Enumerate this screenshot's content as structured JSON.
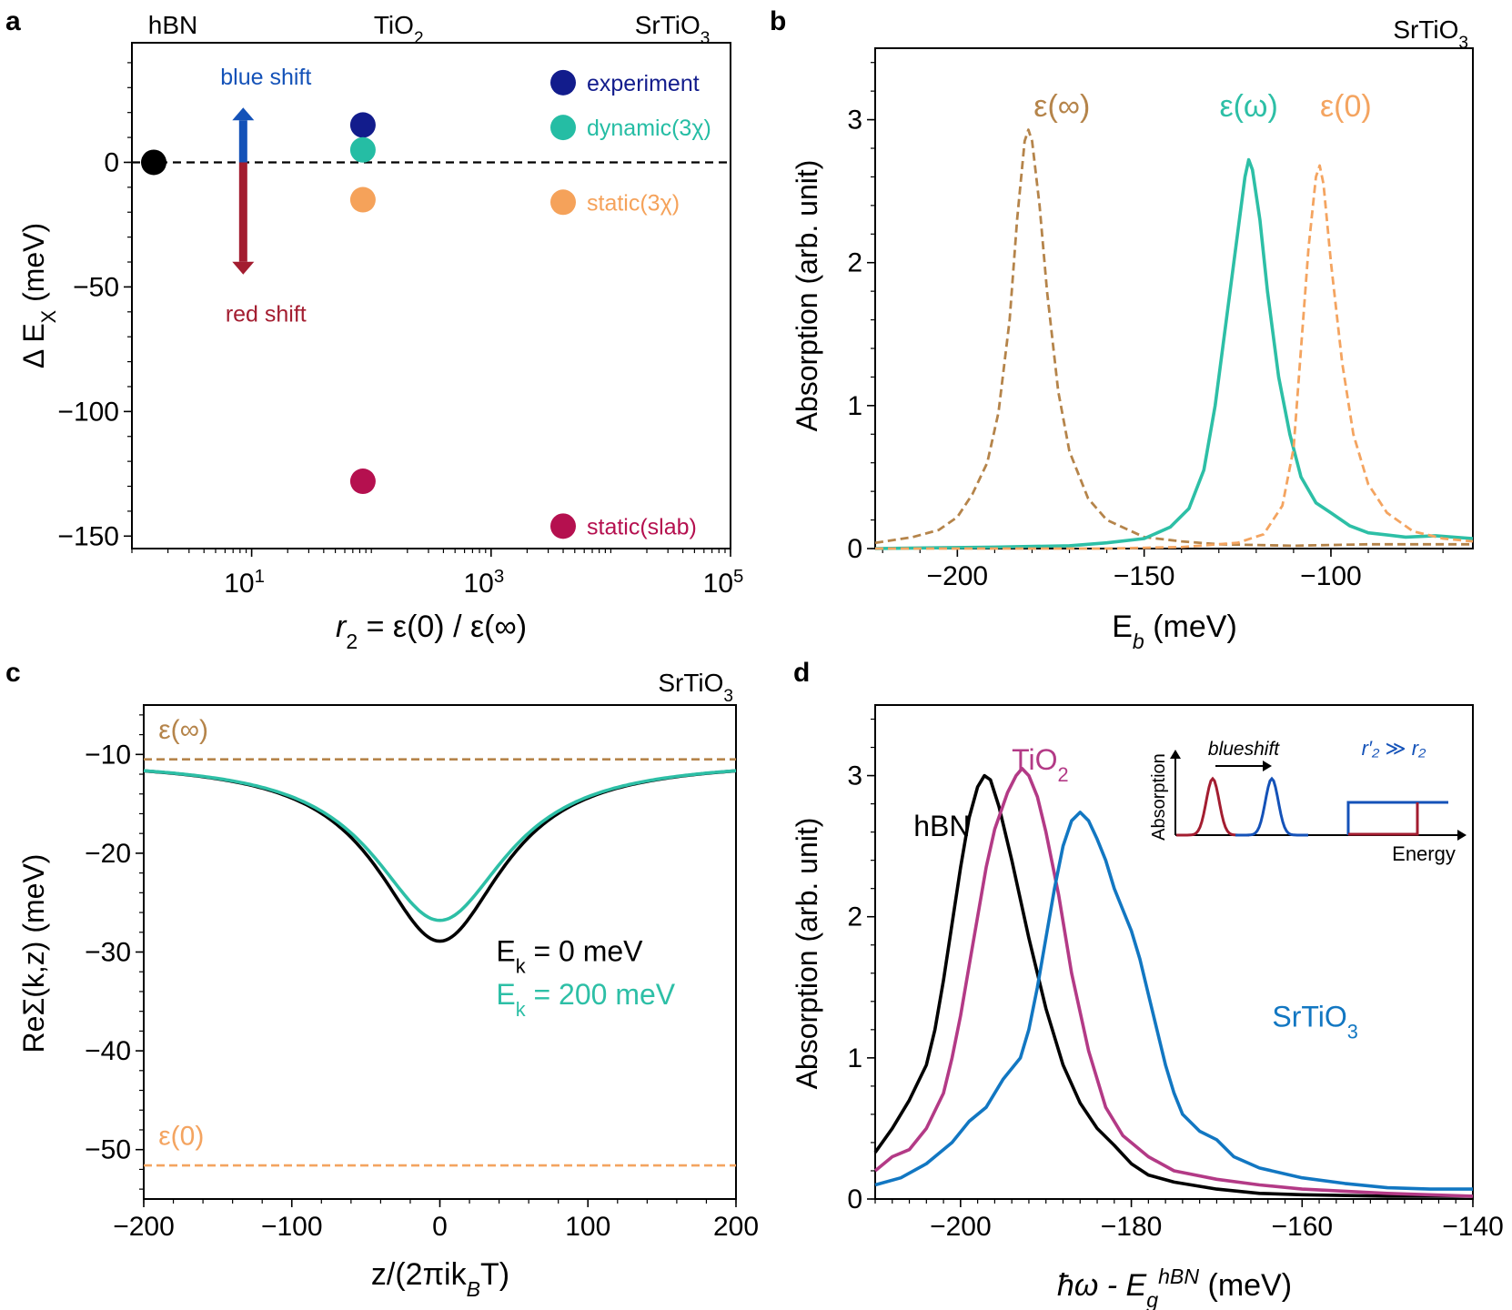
{
  "colors": {
    "navy": "#121c8c",
    "teal": "#25bda4",
    "orange": "#f5a25a",
    "crimson": "#b5104f",
    "black": "#000000",
    "brown": "#b5844a",
    "darkred": "#a31d30",
    "blue": "#1452b8",
    "magenta": "#b33a86",
    "skyblue": "#1277c2",
    "orange_dash": "#f4a460",
    "teal_line": "#2dbfa6"
  },
  "chart_data": [
    {
      "panel": "a",
      "type": "scatter",
      "xlabel_pre": "r",
      "xlabel_sub": "2",
      "xlabel_post": " = ε(0) / ε(∞)",
      "ylabel_main": "Δ E",
      "ylabel_sub": "X",
      "ylabel_unit": " (meV)",
      "x_scale": "log",
      "xlim": [
        1,
        100000
      ],
      "ylim": [
        -155,
        48
      ],
      "xticks": [
        {
          "v": 10,
          "base": "10",
          "exp": "1"
        },
        {
          "v": 1000,
          "base": "10",
          "exp": "3"
        },
        {
          "v": 100000,
          "base": "10",
          "exp": "5"
        }
      ],
      "yticks": [
        0,
        -50,
        -100,
        -150
      ],
      "ytick_labels": [
        "0",
        "−50",
        "−100",
        "−150"
      ],
      "top_labels": [
        {
          "x": 1.0,
          "main": "hBN",
          "sub": ""
        },
        {
          "x": 100,
          "main": "TiO",
          "sub": "2"
        },
        {
          "x": 4000,
          "main": "SrTiO",
          "sub": "3"
        }
      ],
      "zero_line": 0,
      "points": [
        {
          "x": 1.0,
          "y": 0,
          "series": "hBN",
          "color": "black"
        },
        {
          "x": 85,
          "y": 15,
          "series": "experiment",
          "color": "navy"
        },
        {
          "x": 85,
          "y": 5,
          "series": "dynamic(3χ)",
          "color": "teal"
        },
        {
          "x": 85,
          "y": -15,
          "series": "static(3χ)",
          "color": "orange"
        },
        {
          "x": 85,
          "y": -128,
          "series": "static(slab)",
          "color": "crimson"
        }
      ],
      "legend": [
        {
          "label": "experiment",
          "color": "navy",
          "y": 32
        },
        {
          "label": "dynamic(3χ)",
          "color": "teal",
          "y": 14
        },
        {
          "label": "static(3χ)",
          "color": "orange",
          "y": -16
        },
        {
          "label": "static(slab)",
          "color": "crimson",
          "y": -146
        }
      ],
      "arrows": [
        {
          "label": "blue shift",
          "color": "blue",
          "x": 8.5,
          "from": 0,
          "to": 22
        },
        {
          "label": "red shift",
          "color": "darkred",
          "x": 8.5,
          "from": 0,
          "to": -45
        }
      ]
    },
    {
      "panel": "b",
      "type": "line",
      "corner_main": "SrTiO",
      "corner_sub": "3",
      "xlabel_main": "E",
      "xlabel_sub": "b",
      "xlabel_unit": " (meV)",
      "ylabel": "Absorption (arb. unit)",
      "xlim": [
        -222,
        -62
      ],
      "ylim": [
        0,
        3.5
      ],
      "xticks": [
        -200,
        -150,
        -100
      ],
      "xtick_labels": [
        "−200",
        "−150",
        "−100"
      ],
      "yticks": [
        0,
        1,
        2,
        3
      ],
      "ytick_labels": [
        "0",
        "1",
        "2",
        "3"
      ],
      "series": [
        {
          "name": "ε(∞)",
          "color": "brown",
          "dash": true,
          "label_at": [
            -172,
            3.1
          ],
          "points": [
            [
              -222,
              0.04
            ],
            [
              -212,
              0.08
            ],
            [
              -205,
              0.13
            ],
            [
              -200,
              0.22
            ],
            [
              -196,
              0.38
            ],
            [
              -192,
              0.6
            ],
            [
              -189,
              0.95
            ],
            [
              -186,
              1.6
            ],
            [
              -184,
              2.3
            ],
            [
              -182,
              2.85
            ],
            [
              -181,
              2.93
            ],
            [
              -180,
              2.85
            ],
            [
              -178,
              2.4
            ],
            [
              -176,
              1.8
            ],
            [
              -173,
              1.1
            ],
            [
              -170,
              0.68
            ],
            [
              -165,
              0.35
            ],
            [
              -160,
              0.2
            ],
            [
              -150,
              0.08
            ],
            [
              -140,
              0.05
            ],
            [
              -130,
              0.03
            ],
            [
              -110,
              0.02
            ],
            [
              -90,
              0.03
            ],
            [
              -62,
              0.03
            ]
          ]
        },
        {
          "name": "ε(ω)",
          "color": "teal_line",
          "dash": false,
          "label_at": [
            -122,
            3.1
          ],
          "points": [
            [
              -222,
              0.0
            ],
            [
              -190,
              0.01
            ],
            [
              -170,
              0.02
            ],
            [
              -160,
              0.04
            ],
            [
              -150,
              0.07
            ],
            [
              -143,
              0.15
            ],
            [
              -138,
              0.28
            ],
            [
              -134,
              0.55
            ],
            [
              -131,
              1.0
            ],
            [
              -128,
              1.6
            ],
            [
              -125,
              2.2
            ],
            [
              -123,
              2.6
            ],
            [
              -122,
              2.72
            ],
            [
              -121,
              2.65
            ],
            [
              -119,
              2.3
            ],
            [
              -117,
              1.8
            ],
            [
              -114,
              1.2
            ],
            [
              -111,
              0.8
            ],
            [
              -108,
              0.5
            ],
            [
              -104,
              0.32
            ],
            [
              -100,
              0.25
            ],
            [
              -95,
              0.16
            ],
            [
              -90,
              0.11
            ],
            [
              -80,
              0.08
            ],
            [
              -72,
              0.09
            ],
            [
              -62,
              0.07
            ]
          ]
        },
        {
          "name": "ε(0)",
          "color": "orange_dash",
          "dash": true,
          "label_at": [
            -96,
            3.1
          ],
          "points": [
            [
              -222,
              0.0
            ],
            [
              -160,
              0.0
            ],
            [
              -140,
              0.01
            ],
            [
              -125,
              0.04
            ],
            [
              -118,
              0.1
            ],
            [
              -113,
              0.3
            ],
            [
              -110,
              0.7
            ],
            [
              -108,
              1.4
            ],
            [
              -106,
              2.1
            ],
            [
              -104,
              2.6
            ],
            [
              -103,
              2.68
            ],
            [
              -102,
              2.55
            ],
            [
              -100,
              2.0
            ],
            [
              -97,
              1.3
            ],
            [
              -94,
              0.8
            ],
            [
              -90,
              0.45
            ],
            [
              -85,
              0.25
            ],
            [
              -78,
              0.12
            ],
            [
              -70,
              0.07
            ],
            [
              -62,
              0.05
            ]
          ]
        }
      ]
    },
    {
      "panel": "c",
      "type": "line",
      "corner_main": "SrTiO",
      "corner_sub": "3",
      "xlabel_main": "z/(2πik",
      "xlabel_sub": "B",
      "xlabel_post": "T)",
      "ylabel": "ReΣ(k,z) (meV)",
      "xlim": [
        -200,
        200
      ],
      "ylim": [
        -55,
        -5
      ],
      "xticks": [
        -200,
        -100,
        0,
        100,
        200
      ],
      "xtick_labels": [
        "−200",
        "−100",
        "0",
        "100",
        "200"
      ],
      "yticks": [
        -10,
        -20,
        -30,
        -40,
        -50
      ],
      "ytick_labels": [
        "−10",
        "−20",
        "−30",
        "−40",
        "−50"
      ],
      "hlines": [
        {
          "name": "ε(∞)",
          "y": -10.5,
          "color": "brown",
          "label_at": [
            -190,
            -7.4
          ]
        },
        {
          "name": "ε(0)",
          "y": -51.6,
          "color": "orange_dash",
          "label_at": [
            -190,
            -48.5
          ]
        }
      ],
      "series": [
        {
          "name": "E_k = 0 meV",
          "label_main": "E",
          "label_sub": "k",
          "label_post": " = 0 meV",
          "color": "black",
          "label_at": [
            38,
            -29.8
          ],
          "depth": 18.4,
          "width": 52
        },
        {
          "name": "E_k = 200 meV",
          "label_main": "E",
          "label_sub": "k",
          "label_post": " = 200 meV",
          "color": "teal_line",
          "label_at": [
            38,
            -34.2
          ],
          "depth": 16.3,
          "width": 55
        }
      ]
    },
    {
      "panel": "d",
      "type": "line",
      "xlabel_main": "ħω - E",
      "xlabel_sub": "g",
      "xlabel_sup": "hBN",
      "xlabel_unit": " (meV)",
      "ylabel": "Absorption (arb. unit)",
      "xlim": [
        -210,
        -140
      ],
      "ylim": [
        0,
        3.5
      ],
      "xticks": [
        -200,
        -180,
        -160,
        -140
      ],
      "xtick_labels": [
        "−200",
        "−180",
        "−160",
        "−140"
      ],
      "yticks": [
        0,
        1,
        2,
        3
      ],
      "ytick_labels": [
        "0",
        "1",
        "2",
        "3"
      ],
      "series": [
        {
          "name": "hBN",
          "label_main": "hBN",
          "label_sub": "",
          "color": "black",
          "label_at": [
            -205.5,
            2.65
          ],
          "points": [
            [
              -210,
              0.33
            ],
            [
              -208,
              0.5
            ],
            [
              -206,
              0.7
            ],
            [
              -204,
              0.95
            ],
            [
              -203,
              1.2
            ],
            [
              -202,
              1.55
            ],
            [
              -201,
              1.95
            ],
            [
              -200,
              2.35
            ],
            [
              -199,
              2.7
            ],
            [
              -198,
              2.92
            ],
            [
              -197.2,
              3.0
            ],
            [
              -196.5,
              2.97
            ],
            [
              -195.5,
              2.78
            ],
            [
              -194,
              2.4
            ],
            [
              -192,
              1.85
            ],
            [
              -190,
              1.35
            ],
            [
              -188,
              0.95
            ],
            [
              -186,
              0.68
            ],
            [
              -184,
              0.5
            ],
            [
              -182,
              0.38
            ],
            [
              -180,
              0.25
            ],
            [
              -178,
              0.17
            ],
            [
              -175,
              0.12
            ],
            [
              -170,
              0.07
            ],
            [
              -165,
              0.04
            ],
            [
              -160,
              0.03
            ],
            [
              -150,
              0.02
            ],
            [
              -140,
              0.02
            ]
          ]
        },
        {
          "name": "TiO2",
          "label_main": "TiO",
          "label_sub": "2",
          "color": "magenta",
          "label_at": [
            -194,
            3.12
          ],
          "points": [
            [
              -210,
              0.2
            ],
            [
              -208,
              0.3
            ],
            [
              -206,
              0.35
            ],
            [
              -204,
              0.5
            ],
            [
              -202,
              0.75
            ],
            [
              -201,
              1.0
            ],
            [
              -200,
              1.3
            ],
            [
              -199,
              1.65
            ],
            [
              -198,
              2.0
            ],
            [
              -197,
              2.35
            ],
            [
              -196,
              2.62
            ],
            [
              -194.5,
              2.88
            ],
            [
              -193.5,
              3.0
            ],
            [
              -192.8,
              3.05
            ],
            [
              -192,
              3.0
            ],
            [
              -191,
              2.85
            ],
            [
              -190,
              2.6
            ],
            [
              -188.5,
              2.15
            ],
            [
              -187,
              1.6
            ],
            [
              -185,
              1.05
            ],
            [
              -183,
              0.65
            ],
            [
              -181,
              0.45
            ],
            [
              -178,
              0.3
            ],
            [
              -175,
              0.2
            ],
            [
              -170,
              0.14
            ],
            [
              -165,
              0.1
            ],
            [
              -160,
              0.07
            ],
            [
              -150,
              0.04
            ],
            [
              -140,
              0.02
            ]
          ]
        },
        {
          "name": "SrTiO3",
          "label_main": "SrTiO",
          "label_sub": "3",
          "color": "skyblue",
          "label_at": [
            -163.5,
            1.3
          ],
          "points": [
            [
              -210,
              0.1
            ],
            [
              -207,
              0.15
            ],
            [
              -204,
              0.25
            ],
            [
              -201,
              0.4
            ],
            [
              -199,
              0.55
            ],
            [
              -197,
              0.65
            ],
            [
              -195,
              0.85
            ],
            [
              -193,
              1.0
            ],
            [
              -192,
              1.2
            ],
            [
              -191,
              1.5
            ],
            [
              -190,
              1.85
            ],
            [
              -189,
              2.2
            ],
            [
              -188,
              2.5
            ],
            [
              -187,
              2.68
            ],
            [
              -186,
              2.74
            ],
            [
              -185,
              2.68
            ],
            [
              -184,
              2.55
            ],
            [
              -183,
              2.4
            ],
            [
              -182,
              2.2
            ],
            [
              -181,
              2.05
            ],
            [
              -180,
              1.9
            ],
            [
              -179,
              1.7
            ],
            [
              -178,
              1.45
            ],
            [
              -177,
              1.2
            ],
            [
              -176,
              0.95
            ],
            [
              -175,
              0.75
            ],
            [
              -174,
              0.6
            ],
            [
              -172,
              0.48
            ],
            [
              -170,
              0.42
            ],
            [
              -168,
              0.3
            ],
            [
              -165,
              0.22
            ],
            [
              -160,
              0.15
            ],
            [
              -155,
              0.11
            ],
            [
              -150,
              0.08
            ],
            [
              -145,
              0.07
            ],
            [
              -140,
              0.07
            ]
          ]
        }
      ],
      "inset": {
        "xlabel": "Energy",
        "ylabel": "Absorption",
        "arrow_label": "blueshift",
        "annotation": "r′₂ ≫ r₂",
        "left_color": "darkred",
        "right_color": "blue"
      }
    }
  ],
  "panel_labels": {
    "a": "a",
    "b": "b",
    "c": "c",
    "d": "d"
  }
}
